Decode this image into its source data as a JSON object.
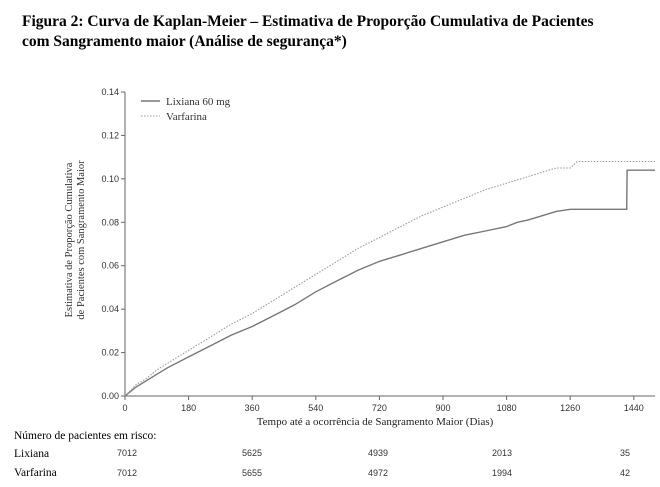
{
  "figure": {
    "title_line1": "Figura 2: Curva de Kaplan-Meier – Estimativa de Proporção Cumulativa de Pacientes",
    "title_line2": "com Sangramento maior (Análise de segurança*)"
  },
  "chart_data": {
    "type": "line",
    "xlabel": "Tempo até a ocorrência de Sangramento Maior (Dias)",
    "ylabel_line1": "Estimativa de Proporção Cumulativa",
    "ylabel_line2": "de Pacientes com Sangramento Maior",
    "xlim": [
      0,
      1500
    ],
    "ylim": [
      0,
      0.14
    ],
    "xticks": [
      0,
      180,
      360,
      540,
      720,
      900,
      1080,
      1260,
      1440
    ],
    "yticks": [
      "0.00",
      "0.02",
      "0.04",
      "0.06",
      "0.08",
      "0.10",
      "0.12",
      "0.14"
    ],
    "legend_position": "top-left",
    "series": [
      {
        "name": "Lixiana 60 mg",
        "style": "solid",
        "color": "#777777",
        "x": [
          0,
          30,
          60,
          90,
          120,
          180,
          240,
          300,
          360,
          420,
          480,
          540,
          600,
          660,
          720,
          780,
          840,
          900,
          960,
          1020,
          1080,
          1110,
          1140,
          1180,
          1220,
          1260,
          1300,
          1340,
          1380,
          1420,
          1421,
          1500
        ],
        "y": [
          0,
          0.004,
          0.007,
          0.01,
          0.013,
          0.018,
          0.023,
          0.028,
          0.032,
          0.037,
          0.042,
          0.048,
          0.053,
          0.058,
          0.062,
          0.065,
          0.068,
          0.071,
          0.074,
          0.076,
          0.078,
          0.08,
          0.081,
          0.083,
          0.085,
          0.086,
          0.086,
          0.086,
          0.086,
          0.086,
          0.104,
          0.104
        ]
      },
      {
        "name": "Varfarina",
        "style": "dotted",
        "color": "#999999",
        "x": [
          0,
          30,
          60,
          90,
          120,
          180,
          240,
          300,
          360,
          420,
          480,
          540,
          600,
          660,
          720,
          780,
          840,
          900,
          960,
          1020,
          1080,
          1140,
          1180,
          1220,
          1260,
          1280,
          1300,
          1500
        ],
        "y": [
          0,
          0.005,
          0.008,
          0.012,
          0.015,
          0.021,
          0.027,
          0.033,
          0.038,
          0.044,
          0.05,
          0.056,
          0.062,
          0.068,
          0.073,
          0.078,
          0.083,
          0.087,
          0.091,
          0.095,
          0.098,
          0.101,
          0.103,
          0.105,
          0.105,
          0.108,
          0.108,
          0.108
        ]
      }
    ]
  },
  "risk_table": {
    "title": "Número de pacientes em risco:",
    "rows": [
      {
        "label": "Lixiana",
        "values": [
          "7012",
          "5625",
          "4939",
          "2013",
          "35"
        ]
      },
      {
        "label": "Varfarina",
        "values": [
          "7012",
          "5655",
          "4972",
          "1994",
          "42"
        ]
      }
    ],
    "at_days": [
      0,
      360,
      720,
      1080,
      1440
    ]
  }
}
